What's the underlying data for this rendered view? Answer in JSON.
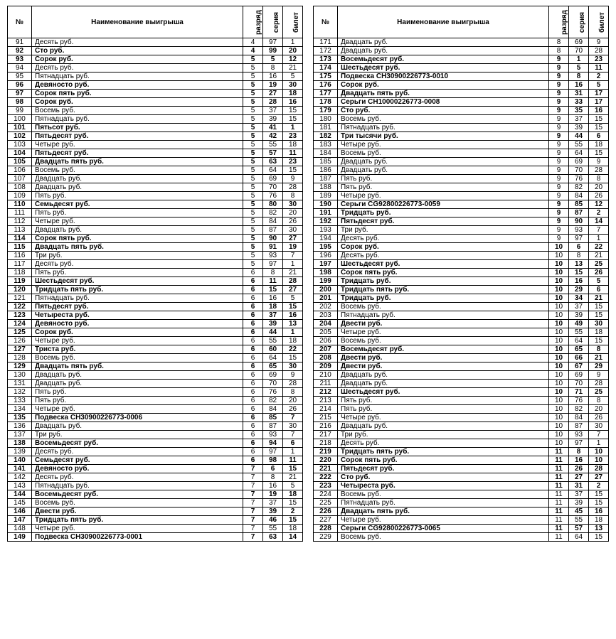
{
  "headers": {
    "num": "№",
    "name": "Наименование выигрыша",
    "rank": "разряд",
    "series": "серия",
    "ticket": "билет"
  },
  "left": [
    {
      "n": 91,
      "name": "Десять руб.",
      "r": 4,
      "s": 97,
      "t": 1,
      "b": 0
    },
    {
      "n": 92,
      "name": "Сто руб.",
      "r": 4,
      "s": 99,
      "t": 20,
      "b": 1
    },
    {
      "n": 93,
      "name": "Сорок руб.",
      "r": 5,
      "s": 5,
      "t": 12,
      "b": 1
    },
    {
      "n": 94,
      "name": "Десять руб.",
      "r": 5,
      "s": 8,
      "t": 21,
      "b": 0
    },
    {
      "n": 95,
      "name": "Пятнадцать руб.",
      "r": 5,
      "s": 16,
      "t": 5,
      "b": 0
    },
    {
      "n": 96,
      "name": "Девяносто руб.",
      "r": 5,
      "s": 19,
      "t": 30,
      "b": 1
    },
    {
      "n": 97,
      "name": "Сорок пять руб.",
      "r": 5,
      "s": 27,
      "t": 18,
      "b": 1
    },
    {
      "n": 98,
      "name": "Сорок руб.",
      "r": 5,
      "s": 28,
      "t": 16,
      "b": 1
    },
    {
      "n": 99,
      "name": "Восемь руб.",
      "r": 5,
      "s": 37,
      "t": 15,
      "b": 0
    },
    {
      "n": 100,
      "name": "Пятнадцать руб.",
      "r": 5,
      "s": 39,
      "t": 15,
      "b": 0
    },
    {
      "n": 101,
      "name": "Пятьсот руб.",
      "r": 5,
      "s": 41,
      "t": 1,
      "b": 1
    },
    {
      "n": 102,
      "name": "Пятьдесят руб.",
      "r": 5,
      "s": 42,
      "t": 23,
      "b": 1
    },
    {
      "n": 103,
      "name": "Четыре руб.",
      "r": 5,
      "s": 55,
      "t": 18,
      "b": 0
    },
    {
      "n": 104,
      "name": "Пятьдесят руб.",
      "r": 5,
      "s": 57,
      "t": 11,
      "b": 1
    },
    {
      "n": 105,
      "name": "Двадцать пять руб.",
      "r": 5,
      "s": 63,
      "t": 23,
      "b": 1
    },
    {
      "n": 106,
      "name": "Восемь руб.",
      "r": 5,
      "s": 64,
      "t": 15,
      "b": 0
    },
    {
      "n": 107,
      "name": "Двадцать руб.",
      "r": 5,
      "s": 69,
      "t": 9,
      "b": 0
    },
    {
      "n": 108,
      "name": "Двадцать руб.",
      "r": 5,
      "s": 70,
      "t": 28,
      "b": 0
    },
    {
      "n": 109,
      "name": "Пять руб.",
      "r": 5,
      "s": 76,
      "t": 8,
      "b": 0
    },
    {
      "n": 110,
      "name": "Семьдесят руб.",
      "r": 5,
      "s": 80,
      "t": 30,
      "b": 1
    },
    {
      "n": 111,
      "name": "Пять руб.",
      "r": 5,
      "s": 82,
      "t": 20,
      "b": 0
    },
    {
      "n": 112,
      "name": "Четыре руб.",
      "r": 5,
      "s": 84,
      "t": 26,
      "b": 0
    },
    {
      "n": 113,
      "name": "Двадцать руб.",
      "r": 5,
      "s": 87,
      "t": 30,
      "b": 0
    },
    {
      "n": 114,
      "name": "Сорок пять руб.",
      "r": 5,
      "s": 90,
      "t": 27,
      "b": 1
    },
    {
      "n": 115,
      "name": "Двадцать пять руб.",
      "r": 5,
      "s": 91,
      "t": 19,
      "b": 1
    },
    {
      "n": 116,
      "name": "Три руб.",
      "r": 5,
      "s": 93,
      "t": 7,
      "b": 0
    },
    {
      "n": 117,
      "name": "Десять руб.",
      "r": 5,
      "s": 97,
      "t": 1,
      "b": 0
    },
    {
      "n": 118,
      "name": "Пять руб.",
      "r": 6,
      "s": 8,
      "t": 21,
      "b": 0
    },
    {
      "n": 119,
      "name": "Шестьдесят руб.",
      "r": 6,
      "s": 11,
      "t": 28,
      "b": 1
    },
    {
      "n": 120,
      "name": "Тридцать пять руб.",
      "r": 6,
      "s": 15,
      "t": 27,
      "b": 1
    },
    {
      "n": 121,
      "name": "Пятнадцать руб.",
      "r": 6,
      "s": 16,
      "t": 5,
      "b": 0
    },
    {
      "n": 122,
      "name": "Пятьдесят руб.",
      "r": 6,
      "s": 18,
      "t": 15,
      "b": 1
    },
    {
      "n": 123,
      "name": "Четыреста руб.",
      "r": 6,
      "s": 37,
      "t": 16,
      "b": 1
    },
    {
      "n": 124,
      "name": "Девяносто руб.",
      "r": 6,
      "s": 39,
      "t": 13,
      "b": 1
    },
    {
      "n": 125,
      "name": "Сорок руб.",
      "r": 6,
      "s": 44,
      "t": 1,
      "b": 1
    },
    {
      "n": 126,
      "name": "Четыре руб.",
      "r": 6,
      "s": 55,
      "t": 18,
      "b": 0
    },
    {
      "n": 127,
      "name": "Триста руб.",
      "r": 6,
      "s": 60,
      "t": 22,
      "b": 1
    },
    {
      "n": 128,
      "name": "Восемь руб.",
      "r": 6,
      "s": 64,
      "t": 15,
      "b": 0
    },
    {
      "n": 129,
      "name": "Двадцать пять руб.",
      "r": 6,
      "s": 65,
      "t": 30,
      "b": 1
    },
    {
      "n": 130,
      "name": "Двадцать руб.",
      "r": 6,
      "s": 69,
      "t": 9,
      "b": 0
    },
    {
      "n": 131,
      "name": "Двадцать руб.",
      "r": 6,
      "s": 70,
      "t": 28,
      "b": 0
    },
    {
      "n": 132,
      "name": "Пять руб.",
      "r": 6,
      "s": 76,
      "t": 8,
      "b": 0
    },
    {
      "n": 133,
      "name": "Пять руб.",
      "r": 6,
      "s": 82,
      "t": 20,
      "b": 0
    },
    {
      "n": 134,
      "name": "Четыре руб.",
      "r": 6,
      "s": 84,
      "t": 26,
      "b": 0
    },
    {
      "n": 135,
      "name": "Подвеска СН30900226773-0006",
      "r": 6,
      "s": 85,
      "t": 7,
      "b": 1
    },
    {
      "n": 136,
      "name": "Двадцать руб.",
      "r": 6,
      "s": 87,
      "t": 30,
      "b": 0
    },
    {
      "n": 137,
      "name": "Три руб.",
      "r": 6,
      "s": 93,
      "t": 7,
      "b": 0
    },
    {
      "n": 138,
      "name": "Восемьдесят руб.",
      "r": 6,
      "s": 94,
      "t": 6,
      "b": 1
    },
    {
      "n": 139,
      "name": "Десять руб.",
      "r": 6,
      "s": 97,
      "t": 1,
      "b": 0
    },
    {
      "n": 140,
      "name": "Семьдесят руб.",
      "r": 6,
      "s": 98,
      "t": 11,
      "b": 1
    },
    {
      "n": 141,
      "name": "Девяносто руб.",
      "r": 7,
      "s": 6,
      "t": 15,
      "b": 1
    },
    {
      "n": 142,
      "name": "Десять руб.",
      "r": 7,
      "s": 8,
      "t": 21,
      "b": 0
    },
    {
      "n": 143,
      "name": "Пятнадцать руб.",
      "r": 7,
      "s": 16,
      "t": 5,
      "b": 0
    },
    {
      "n": 144,
      "name": "Восемьдесят руб.",
      "r": 7,
      "s": 19,
      "t": 18,
      "b": 1
    },
    {
      "n": 145,
      "name": "Восемь руб.",
      "r": 7,
      "s": 37,
      "t": 15,
      "b": 0
    },
    {
      "n": 146,
      "name": "Двести руб.",
      "r": 7,
      "s": 39,
      "t": 2,
      "b": 1
    },
    {
      "n": 147,
      "name": "Тридцать пять руб.",
      "r": 7,
      "s": 46,
      "t": 15,
      "b": 1
    },
    {
      "n": 148,
      "name": "Четыре руб.",
      "r": 7,
      "s": 55,
      "t": 18,
      "b": 0
    },
    {
      "n": 149,
      "name": "Подвеска СН30900226773-0001",
      "r": 7,
      "s": 63,
      "t": 14,
      "b": 1
    }
  ],
  "right": [
    {
      "n": 171,
      "name": "Двадцать руб.",
      "r": 8,
      "s": 69,
      "t": 9,
      "b": 0
    },
    {
      "n": 172,
      "name": "Двадцать руб.",
      "r": 8,
      "s": 70,
      "t": 28,
      "b": 0
    },
    {
      "n": 173,
      "name": "Восемьдесят руб.",
      "r": 9,
      "s": 1,
      "t": 23,
      "b": 1
    },
    {
      "n": 174,
      "name": "Шестьдесят руб.",
      "r": 9,
      "s": 5,
      "t": 11,
      "b": 1
    },
    {
      "n": 175,
      "name": "Подвеска СН30900226773-0010",
      "r": 9,
      "s": 8,
      "t": 2,
      "b": 1
    },
    {
      "n": 176,
      "name": "Сорок руб.",
      "r": 9,
      "s": 16,
      "t": 5,
      "b": 1
    },
    {
      "n": 177,
      "name": "Двадцать пять руб.",
      "r": 9,
      "s": 31,
      "t": 17,
      "b": 1
    },
    {
      "n": 178,
      "name": "Серьги СН10000226773-0008",
      "r": 9,
      "s": 33,
      "t": 17,
      "b": 1
    },
    {
      "n": 179,
      "name": "Сто руб.",
      "r": 9,
      "s": 35,
      "t": 16,
      "b": 1
    },
    {
      "n": 180,
      "name": "Восемь руб.",
      "r": 9,
      "s": 37,
      "t": 15,
      "b": 0
    },
    {
      "n": 181,
      "name": "Пятнадцать руб.",
      "r": 9,
      "s": 39,
      "t": 15,
      "b": 0
    },
    {
      "n": 182,
      "name": "Три тысячи руб.",
      "r": 9,
      "s": 44,
      "t": 6,
      "b": 1
    },
    {
      "n": 183,
      "name": "Четыре руб.",
      "r": 9,
      "s": 55,
      "t": 18,
      "b": 0
    },
    {
      "n": 184,
      "name": "Восемь руб.",
      "r": 9,
      "s": 64,
      "t": 15,
      "b": 0
    },
    {
      "n": 185,
      "name": "Двадцать руб.",
      "r": 9,
      "s": 69,
      "t": 9,
      "b": 0
    },
    {
      "n": 186,
      "name": "Двадцать руб.",
      "r": 9,
      "s": 70,
      "t": 28,
      "b": 0
    },
    {
      "n": 187,
      "name": "Пять руб.",
      "r": 9,
      "s": 76,
      "t": 8,
      "b": 0
    },
    {
      "n": 188,
      "name": "Пять руб.",
      "r": 9,
      "s": 82,
      "t": 20,
      "b": 0
    },
    {
      "n": 189,
      "name": "Четыре руб.",
      "r": 9,
      "s": 84,
      "t": 26,
      "b": 0
    },
    {
      "n": 190,
      "name": "Серьги CG92800226773-0059",
      "r": 9,
      "s": 85,
      "t": 12,
      "b": 1
    },
    {
      "n": 191,
      "name": "Тридцать руб.",
      "r": 9,
      "s": 87,
      "t": 2,
      "b": 1
    },
    {
      "n": 192,
      "name": "Пятьдесят руб.",
      "r": 9,
      "s": 90,
      "t": 14,
      "b": 1
    },
    {
      "n": 193,
      "name": "Три руб.",
      "r": 9,
      "s": 93,
      "t": 7,
      "b": 0
    },
    {
      "n": 194,
      "name": "Десять руб.",
      "r": 9,
      "s": 97,
      "t": 1,
      "b": 0
    },
    {
      "n": 195,
      "name": "Сорок руб.",
      "r": 10,
      "s": 6,
      "t": 22,
      "b": 1
    },
    {
      "n": 196,
      "name": "Десять руб.",
      "r": 10,
      "s": 8,
      "t": 21,
      "b": 0
    },
    {
      "n": 197,
      "name": "Шестьдесят руб.",
      "r": 10,
      "s": 13,
      "t": 25,
      "b": 1
    },
    {
      "n": 198,
      "name": "Сорок пять руб.",
      "r": 10,
      "s": 15,
      "t": 26,
      "b": 1
    },
    {
      "n": 199,
      "name": "Тридцать руб.",
      "r": 10,
      "s": 16,
      "t": 5,
      "b": 1
    },
    {
      "n": 200,
      "name": "Тридцать пять руб.",
      "r": 10,
      "s": 29,
      "t": 6,
      "b": 1
    },
    {
      "n": 201,
      "name": "Тридцать руб.",
      "r": 10,
      "s": 34,
      "t": 21,
      "b": 1
    },
    {
      "n": 202,
      "name": "Восемь руб.",
      "r": 10,
      "s": 37,
      "t": 15,
      "b": 0
    },
    {
      "n": 203,
      "name": "Пятнадцать руб.",
      "r": 10,
      "s": 39,
      "t": 15,
      "b": 0
    },
    {
      "n": 204,
      "name": "Двести руб.",
      "r": 10,
      "s": 49,
      "t": 30,
      "b": 1
    },
    {
      "n": 205,
      "name": "Четыре руб.",
      "r": 10,
      "s": 55,
      "t": 18,
      "b": 0
    },
    {
      "n": 206,
      "name": "Восемь руб.",
      "r": 10,
      "s": 64,
      "t": 15,
      "b": 0
    },
    {
      "n": 207,
      "name": "Восемьдесят руб.",
      "r": 10,
      "s": 65,
      "t": 8,
      "b": 1
    },
    {
      "n": 208,
      "name": "Двести руб.",
      "r": 10,
      "s": 66,
      "t": 21,
      "b": 1
    },
    {
      "n": 209,
      "name": "Двести руб.",
      "r": 10,
      "s": 67,
      "t": 29,
      "b": 1
    },
    {
      "n": 210,
      "name": "Двадцать руб.",
      "r": 10,
      "s": 69,
      "t": 9,
      "b": 0
    },
    {
      "n": 211,
      "name": "Двадцать руб.",
      "r": 10,
      "s": 70,
      "t": 28,
      "b": 0
    },
    {
      "n": 212,
      "name": "Шестьдесят руб.",
      "r": 10,
      "s": 71,
      "t": 25,
      "b": 1
    },
    {
      "n": 213,
      "name": "Пять руб.",
      "r": 10,
      "s": 76,
      "t": 8,
      "b": 0
    },
    {
      "n": 214,
      "name": "Пять руб.",
      "r": 10,
      "s": 82,
      "t": 20,
      "b": 0
    },
    {
      "n": 215,
      "name": "Четыре руб.",
      "r": 10,
      "s": 84,
      "t": 26,
      "b": 0
    },
    {
      "n": 216,
      "name": "Двадцать руб.",
      "r": 10,
      "s": 87,
      "t": 30,
      "b": 0
    },
    {
      "n": 217,
      "name": "Три руб.",
      "r": 10,
      "s": 93,
      "t": 7,
      "b": 0
    },
    {
      "n": 218,
      "name": "Десять руб.",
      "r": 10,
      "s": 97,
      "t": 1,
      "b": 0
    },
    {
      "n": 219,
      "name": "Тридцать пять руб.",
      "r": 11,
      "s": 8,
      "t": 10,
      "b": 1
    },
    {
      "n": 220,
      "name": "Сорок пять руб.",
      "r": 11,
      "s": 16,
      "t": 10,
      "b": 1
    },
    {
      "n": 221,
      "name": "Пятьдесят руб.",
      "r": 11,
      "s": 26,
      "t": 28,
      "b": 1
    },
    {
      "n": 222,
      "name": "Сто руб.",
      "r": 11,
      "s": 27,
      "t": 27,
      "b": 1
    },
    {
      "n": 223,
      "name": "Четыреста руб.",
      "r": 11,
      "s": 31,
      "t": 2,
      "b": 1
    },
    {
      "n": 224,
      "name": "Восемь руб.",
      "r": 11,
      "s": 37,
      "t": 15,
      "b": 0
    },
    {
      "n": 225,
      "name": "Пятнадцать руб.",
      "r": 11,
      "s": 39,
      "t": 15,
      "b": 0
    },
    {
      "n": 226,
      "name": "Двадцать пять руб.",
      "r": 11,
      "s": 45,
      "t": 16,
      "b": 1
    },
    {
      "n": 227,
      "name": "Четыре руб.",
      "r": 11,
      "s": 55,
      "t": 18,
      "b": 0
    },
    {
      "n": 228,
      "name": "Серьги CG92800226773-0065",
      "r": 11,
      "s": 57,
      "t": 13,
      "b": 1
    },
    {
      "n": 229,
      "name": "Восемь руб.",
      "r": 11,
      "s": 64,
      "t": 15,
      "b": 0
    }
  ]
}
